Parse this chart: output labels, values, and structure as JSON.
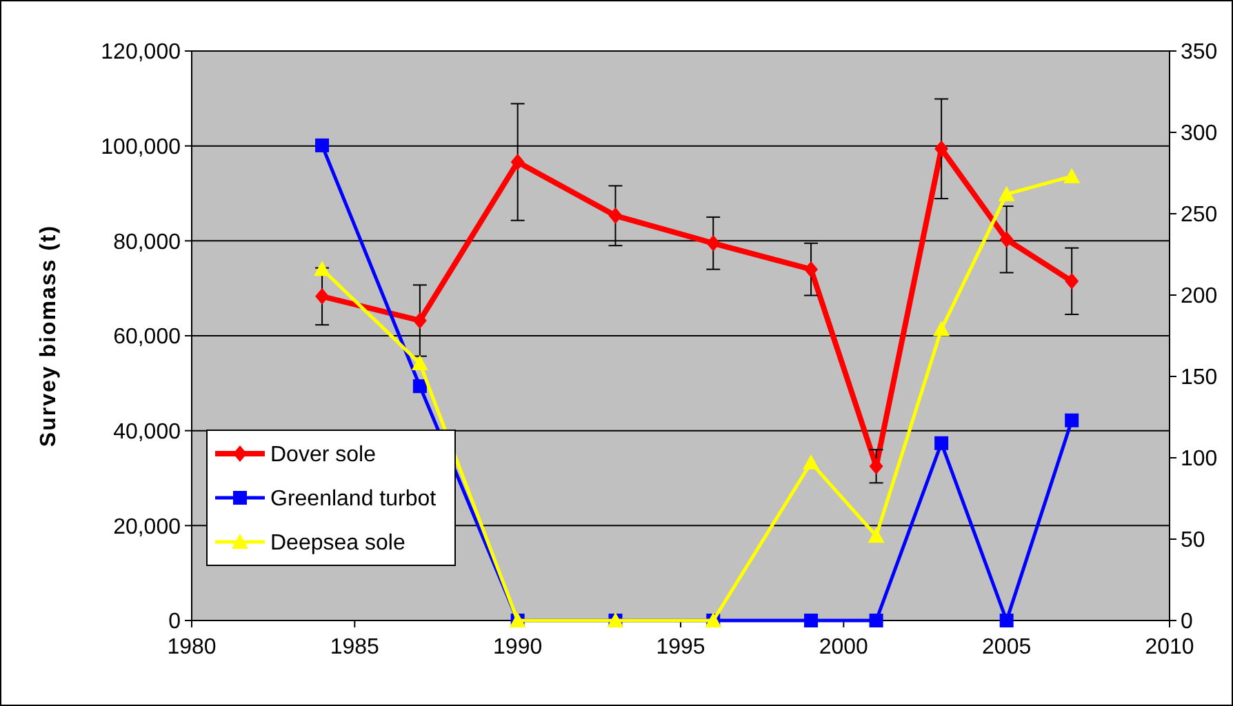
{
  "chart_data": {
    "type": "line",
    "ylabel": "Survey biomass (t)",
    "x": [
      1984,
      1987,
      1990,
      1993,
      1996,
      1999,
      2001,
      2003,
      2005,
      2007
    ],
    "xlim": [
      1980,
      2010
    ],
    "xticks": [
      1980,
      1985,
      1990,
      1995,
      2000,
      2005,
      2010
    ],
    "ylim": [
      0,
      120000
    ],
    "yticks": [
      {
        "value": 0,
        "label": "0"
      },
      {
        "value": 20000,
        "label": "20,000"
      },
      {
        "value": 40000,
        "label": "40,000"
      },
      {
        "value": 60000,
        "label": "60,000"
      },
      {
        "value": 80000,
        "label": "80,000"
      },
      {
        "value": 100000,
        "label": "100,000"
      },
      {
        "value": 120000,
        "label": "120,000"
      }
    ],
    "y2lim": [
      0,
      350
    ],
    "y2ticks": [
      0,
      50,
      100,
      150,
      200,
      250,
      300,
      350
    ],
    "grid": "y",
    "legend": "bottom left",
    "series": [
      {
        "name": "Dover sole",
        "color": "#ff0000",
        "marker": "diamond",
        "values": [
          68300,
          63200,
          96600,
          85300,
          79500,
          74000,
          32500,
          99400,
          80300,
          71500
        ],
        "errors": [
          6000,
          7500,
          12300,
          6300,
          5500,
          5500,
          3500,
          10500,
          7000,
          7000
        ]
      },
      {
        "name": "Greenland turbot",
        "color": "#0000ff",
        "marker": "square",
        "axis": "y2",
        "values": [
          292,
          144,
          0,
          0,
          0,
          0,
          0,
          109,
          0,
          123
        ]
      },
      {
        "name": "Deepsea sole",
        "color": "#ffff00",
        "marker": "triangle",
        "axis": "y2",
        "values": [
          216,
          158,
          0,
          0,
          0,
          97,
          52,
          179,
          262,
          273
        ]
      }
    ]
  }
}
